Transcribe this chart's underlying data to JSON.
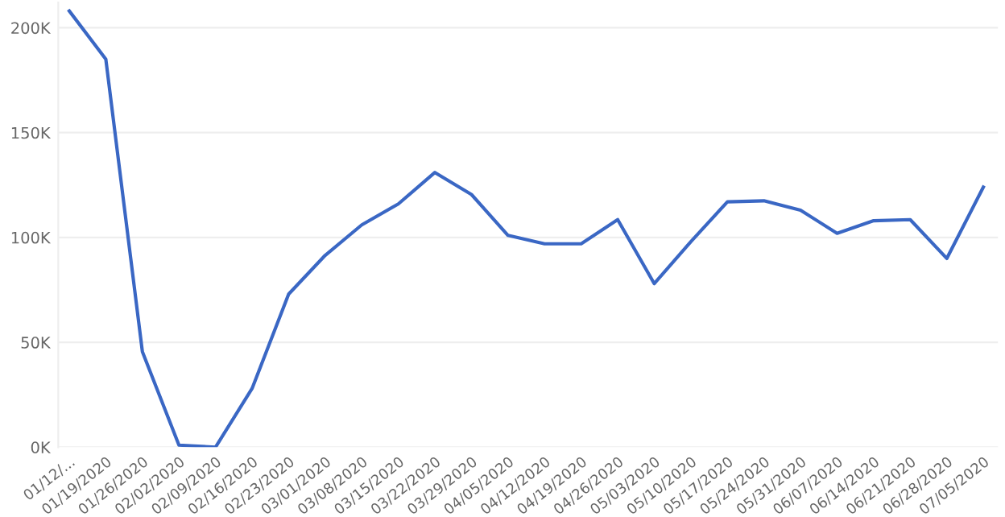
{
  "chart_data": {
    "type": "line",
    "categories": [
      "01/12/...",
      "01/19/2020",
      "01/26/2020",
      "02/02/2020",
      "02/09/2020",
      "02/16/2020",
      "02/23/2020",
      "03/01/2020",
      "03/08/2020",
      "03/15/2020",
      "03/22/2020",
      "03/29/2020",
      "04/05/2020",
      "04/12/2020",
      "04/19/2020",
      "04/26/2020",
      "05/03/2020",
      "05/10/2020",
      "05/17/2020",
      "05/24/2020",
      "05/31/2020",
      "06/07/2020",
      "06/14/2020",
      "06/21/2020",
      "06/28/2020",
      "07/05/2020"
    ],
    "series": [
      {
        "color": "#3a67c4",
        "values": [
          208000,
          185000,
          45500,
          1000,
          0,
          28000,
          73000,
          91500,
          106000,
          116000,
          131000,
          120500,
          101000,
          97000,
          97000,
          108500,
          78000,
          98000,
          117000,
          117500,
          113000,
          102000,
          108000,
          108500,
          90000,
          124000
        ]
      }
    ],
    "ylim": [
      0,
      212000
    ],
    "yticks": [
      {
        "value": 0,
        "label": "0K"
      },
      {
        "value": 50000,
        "label": "50K"
      },
      {
        "value": 100000,
        "label": "100K"
      },
      {
        "value": 150000,
        "label": "150K"
      },
      {
        "value": 200000,
        "label": "200K"
      }
    ],
    "grid": "y",
    "legend": false
  }
}
